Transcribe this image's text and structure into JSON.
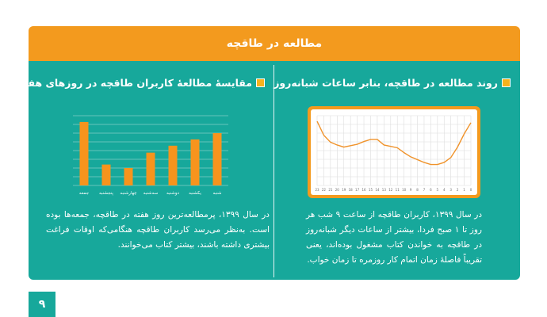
{
  "header": {
    "title": "مطالعه در طاقچه"
  },
  "page_number": "۹",
  "chart_data": [
    {
      "type": "line",
      "title": "روند مطالعه در طاقچه، بنابر ساعات شبانه‌روز",
      "categories": [
        "23",
        "22",
        "21",
        "20",
        "19",
        "18",
        "17",
        "16",
        "15",
        "14",
        "13",
        "12",
        "11",
        "10",
        "9",
        "8",
        "7",
        "6",
        "5",
        "4",
        "3",
        "2",
        "1",
        "0"
      ],
      "values": [
        92,
        72,
        62,
        58,
        55,
        57,
        59,
        63,
        66,
        66,
        58,
        56,
        54,
        47,
        41,
        37,
        33,
        30,
        30,
        33,
        40,
        55,
        74,
        90
      ],
      "color": "#f0932b",
      "ylim": [
        0,
        100
      ],
      "yticks": [
        0,
        12.5,
        25,
        37.5,
        50,
        62.5,
        75,
        87.5,
        100
      ],
      "grid": true,
      "caption": "در سال ۱۳۹۹، کاربران طاقچه از ساعت ۹ شب هر روز تا ۱ صبح فردا، بیشتر از ساعات دیگر شبانه‌روز در طاقچه به خواندن کتاب مشغول بوده‌اند، یعنی تقریباً فاصلهٔ زمان اتمام کار روزمره تا زمان خواب."
    },
    {
      "type": "bar",
      "title": "مقایسهٔ مطالعهٔ کاربران طاقچه در روزهای هفته",
      "categories": [
        "شنبه",
        "یکشنبه",
        "دوشنبه",
        "سه‌شنبه",
        "چهارشنبه",
        "پنجشنبه",
        "جمعه"
      ],
      "values": [
        75,
        66,
        57,
        47,
        25,
        30,
        91
      ],
      "color": "#f7941d",
      "ylim": [
        0,
        100
      ],
      "yticks": [
        0,
        12.5,
        25,
        37.5,
        50,
        62.5,
        75,
        87.5,
        100
      ],
      "grid": true,
      "caption": "در سال ۱۳۹۹، پرمطالعه‌ترین روز هفته در طاقچه، جمعه‌ها بوده است. به‌نظر می‌رسد کاربران طاقچه هنگامی‌که اوقات فراغت بیشتری داشته باشند، بیشتر کتاب می‌خوانند."
    }
  ]
}
